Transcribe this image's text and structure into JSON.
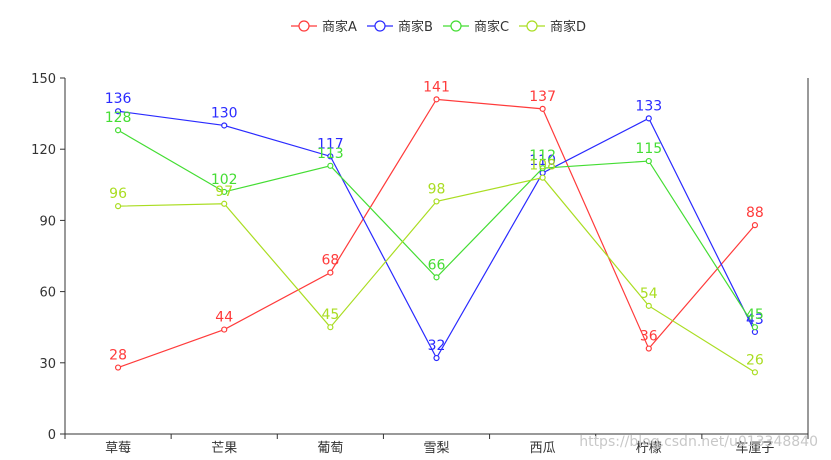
{
  "chart_data": {
    "type": "line",
    "categories": [
      "草莓",
      "芒果",
      "葡萄",
      "雪梨",
      "西瓜",
      "柠檬",
      "车厘子"
    ],
    "ylim": [
      0,
      150
    ],
    "yticks": [
      0,
      30,
      60,
      90,
      120,
      150
    ],
    "grid": false,
    "legend_position": "top",
    "series": [
      {
        "name": "商家A",
        "color": "#ff3b3b",
        "values": [
          28,
          44,
          68,
          141,
          137,
          36,
          88
        ]
      },
      {
        "name": "商家B",
        "color": "#2a2aff",
        "values": [
          136,
          130,
          117,
          32,
          110,
          133,
          43
        ]
      },
      {
        "name": "商家C",
        "color": "#44dd33",
        "values": [
          128,
          102,
          113,
          66,
          112,
          115,
          45
        ]
      },
      {
        "name": "商家D",
        "color": "#aadd22",
        "values": [
          96,
          97,
          45,
          98,
          108,
          54,
          26
        ]
      }
    ]
  },
  "watermark": "https://blog.csdn.net/u013348840"
}
